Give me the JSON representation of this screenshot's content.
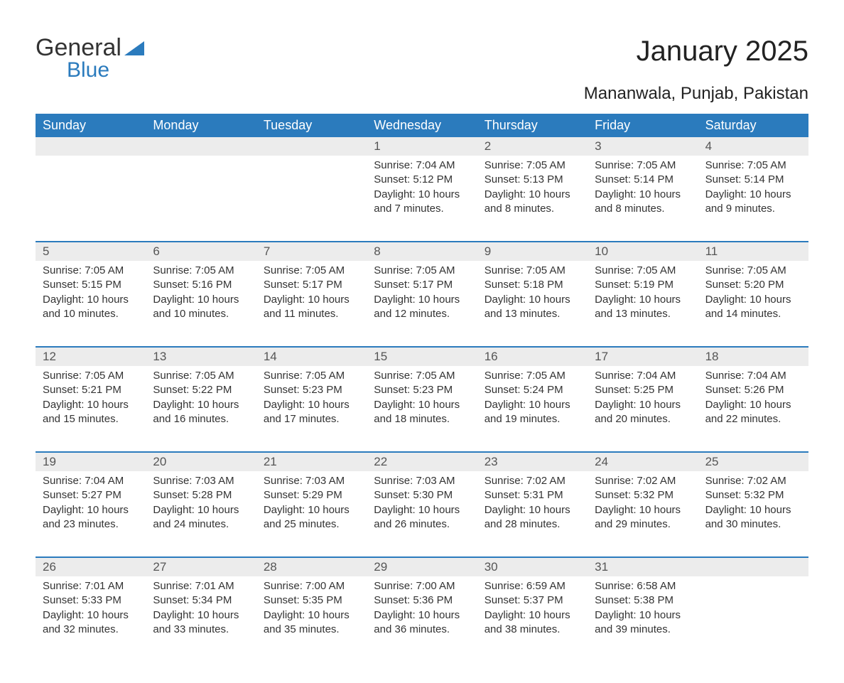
{
  "brand": {
    "name_part1": "General",
    "name_part2": "Blue",
    "accent_color": "#2b7bbd"
  },
  "title": "January 2025",
  "location": "Mananwala, Punjab, Pakistan",
  "colors": {
    "header_bg": "#2b7bbd",
    "header_text": "#ffffff",
    "daynum_bg": "#ececec",
    "text": "#333333",
    "page_bg": "#ffffff"
  },
  "days_of_week": [
    "Sunday",
    "Monday",
    "Tuesday",
    "Wednesday",
    "Thursday",
    "Friday",
    "Saturday"
  ],
  "weeks": [
    [
      null,
      null,
      null,
      {
        "n": "1",
        "sunrise": "7:04 AM",
        "sunset": "5:12 PM",
        "daylight": "10 hours and 7 minutes."
      },
      {
        "n": "2",
        "sunrise": "7:05 AM",
        "sunset": "5:13 PM",
        "daylight": "10 hours and 8 minutes."
      },
      {
        "n": "3",
        "sunrise": "7:05 AM",
        "sunset": "5:14 PM",
        "daylight": "10 hours and 8 minutes."
      },
      {
        "n": "4",
        "sunrise": "7:05 AM",
        "sunset": "5:14 PM",
        "daylight": "10 hours and 9 minutes."
      }
    ],
    [
      {
        "n": "5",
        "sunrise": "7:05 AM",
        "sunset": "5:15 PM",
        "daylight": "10 hours and 10 minutes."
      },
      {
        "n": "6",
        "sunrise": "7:05 AM",
        "sunset": "5:16 PM",
        "daylight": "10 hours and 10 minutes."
      },
      {
        "n": "7",
        "sunrise": "7:05 AM",
        "sunset": "5:17 PM",
        "daylight": "10 hours and 11 minutes."
      },
      {
        "n": "8",
        "sunrise": "7:05 AM",
        "sunset": "5:17 PM",
        "daylight": "10 hours and 12 minutes."
      },
      {
        "n": "9",
        "sunrise": "7:05 AM",
        "sunset": "5:18 PM",
        "daylight": "10 hours and 13 minutes."
      },
      {
        "n": "10",
        "sunrise": "7:05 AM",
        "sunset": "5:19 PM",
        "daylight": "10 hours and 13 minutes."
      },
      {
        "n": "11",
        "sunrise": "7:05 AM",
        "sunset": "5:20 PM",
        "daylight": "10 hours and 14 minutes."
      }
    ],
    [
      {
        "n": "12",
        "sunrise": "7:05 AM",
        "sunset": "5:21 PM",
        "daylight": "10 hours and 15 minutes."
      },
      {
        "n": "13",
        "sunrise": "7:05 AM",
        "sunset": "5:22 PM",
        "daylight": "10 hours and 16 minutes."
      },
      {
        "n": "14",
        "sunrise": "7:05 AM",
        "sunset": "5:23 PM",
        "daylight": "10 hours and 17 minutes."
      },
      {
        "n": "15",
        "sunrise": "7:05 AM",
        "sunset": "5:23 PM",
        "daylight": "10 hours and 18 minutes."
      },
      {
        "n": "16",
        "sunrise": "7:05 AM",
        "sunset": "5:24 PM",
        "daylight": "10 hours and 19 minutes."
      },
      {
        "n": "17",
        "sunrise": "7:04 AM",
        "sunset": "5:25 PM",
        "daylight": "10 hours and 20 minutes."
      },
      {
        "n": "18",
        "sunrise": "7:04 AM",
        "sunset": "5:26 PM",
        "daylight": "10 hours and 22 minutes."
      }
    ],
    [
      {
        "n": "19",
        "sunrise": "7:04 AM",
        "sunset": "5:27 PM",
        "daylight": "10 hours and 23 minutes."
      },
      {
        "n": "20",
        "sunrise": "7:03 AM",
        "sunset": "5:28 PM",
        "daylight": "10 hours and 24 minutes."
      },
      {
        "n": "21",
        "sunrise": "7:03 AM",
        "sunset": "5:29 PM",
        "daylight": "10 hours and 25 minutes."
      },
      {
        "n": "22",
        "sunrise": "7:03 AM",
        "sunset": "5:30 PM",
        "daylight": "10 hours and 26 minutes."
      },
      {
        "n": "23",
        "sunrise": "7:02 AM",
        "sunset": "5:31 PM",
        "daylight": "10 hours and 28 minutes."
      },
      {
        "n": "24",
        "sunrise": "7:02 AM",
        "sunset": "5:32 PM",
        "daylight": "10 hours and 29 minutes."
      },
      {
        "n": "25",
        "sunrise": "7:02 AM",
        "sunset": "5:32 PM",
        "daylight": "10 hours and 30 minutes."
      }
    ],
    [
      {
        "n": "26",
        "sunrise": "7:01 AM",
        "sunset": "5:33 PM",
        "daylight": "10 hours and 32 minutes."
      },
      {
        "n": "27",
        "sunrise": "7:01 AM",
        "sunset": "5:34 PM",
        "daylight": "10 hours and 33 minutes."
      },
      {
        "n": "28",
        "sunrise": "7:00 AM",
        "sunset": "5:35 PM",
        "daylight": "10 hours and 35 minutes."
      },
      {
        "n": "29",
        "sunrise": "7:00 AM",
        "sunset": "5:36 PM",
        "daylight": "10 hours and 36 minutes."
      },
      {
        "n": "30",
        "sunrise": "6:59 AM",
        "sunset": "5:37 PM",
        "daylight": "10 hours and 38 minutes."
      },
      {
        "n": "31",
        "sunrise": "6:58 AM",
        "sunset": "5:38 PM",
        "daylight": "10 hours and 39 minutes."
      },
      null
    ]
  ],
  "labels": {
    "sunrise": "Sunrise:",
    "sunset": "Sunset:",
    "daylight": "Daylight:"
  }
}
